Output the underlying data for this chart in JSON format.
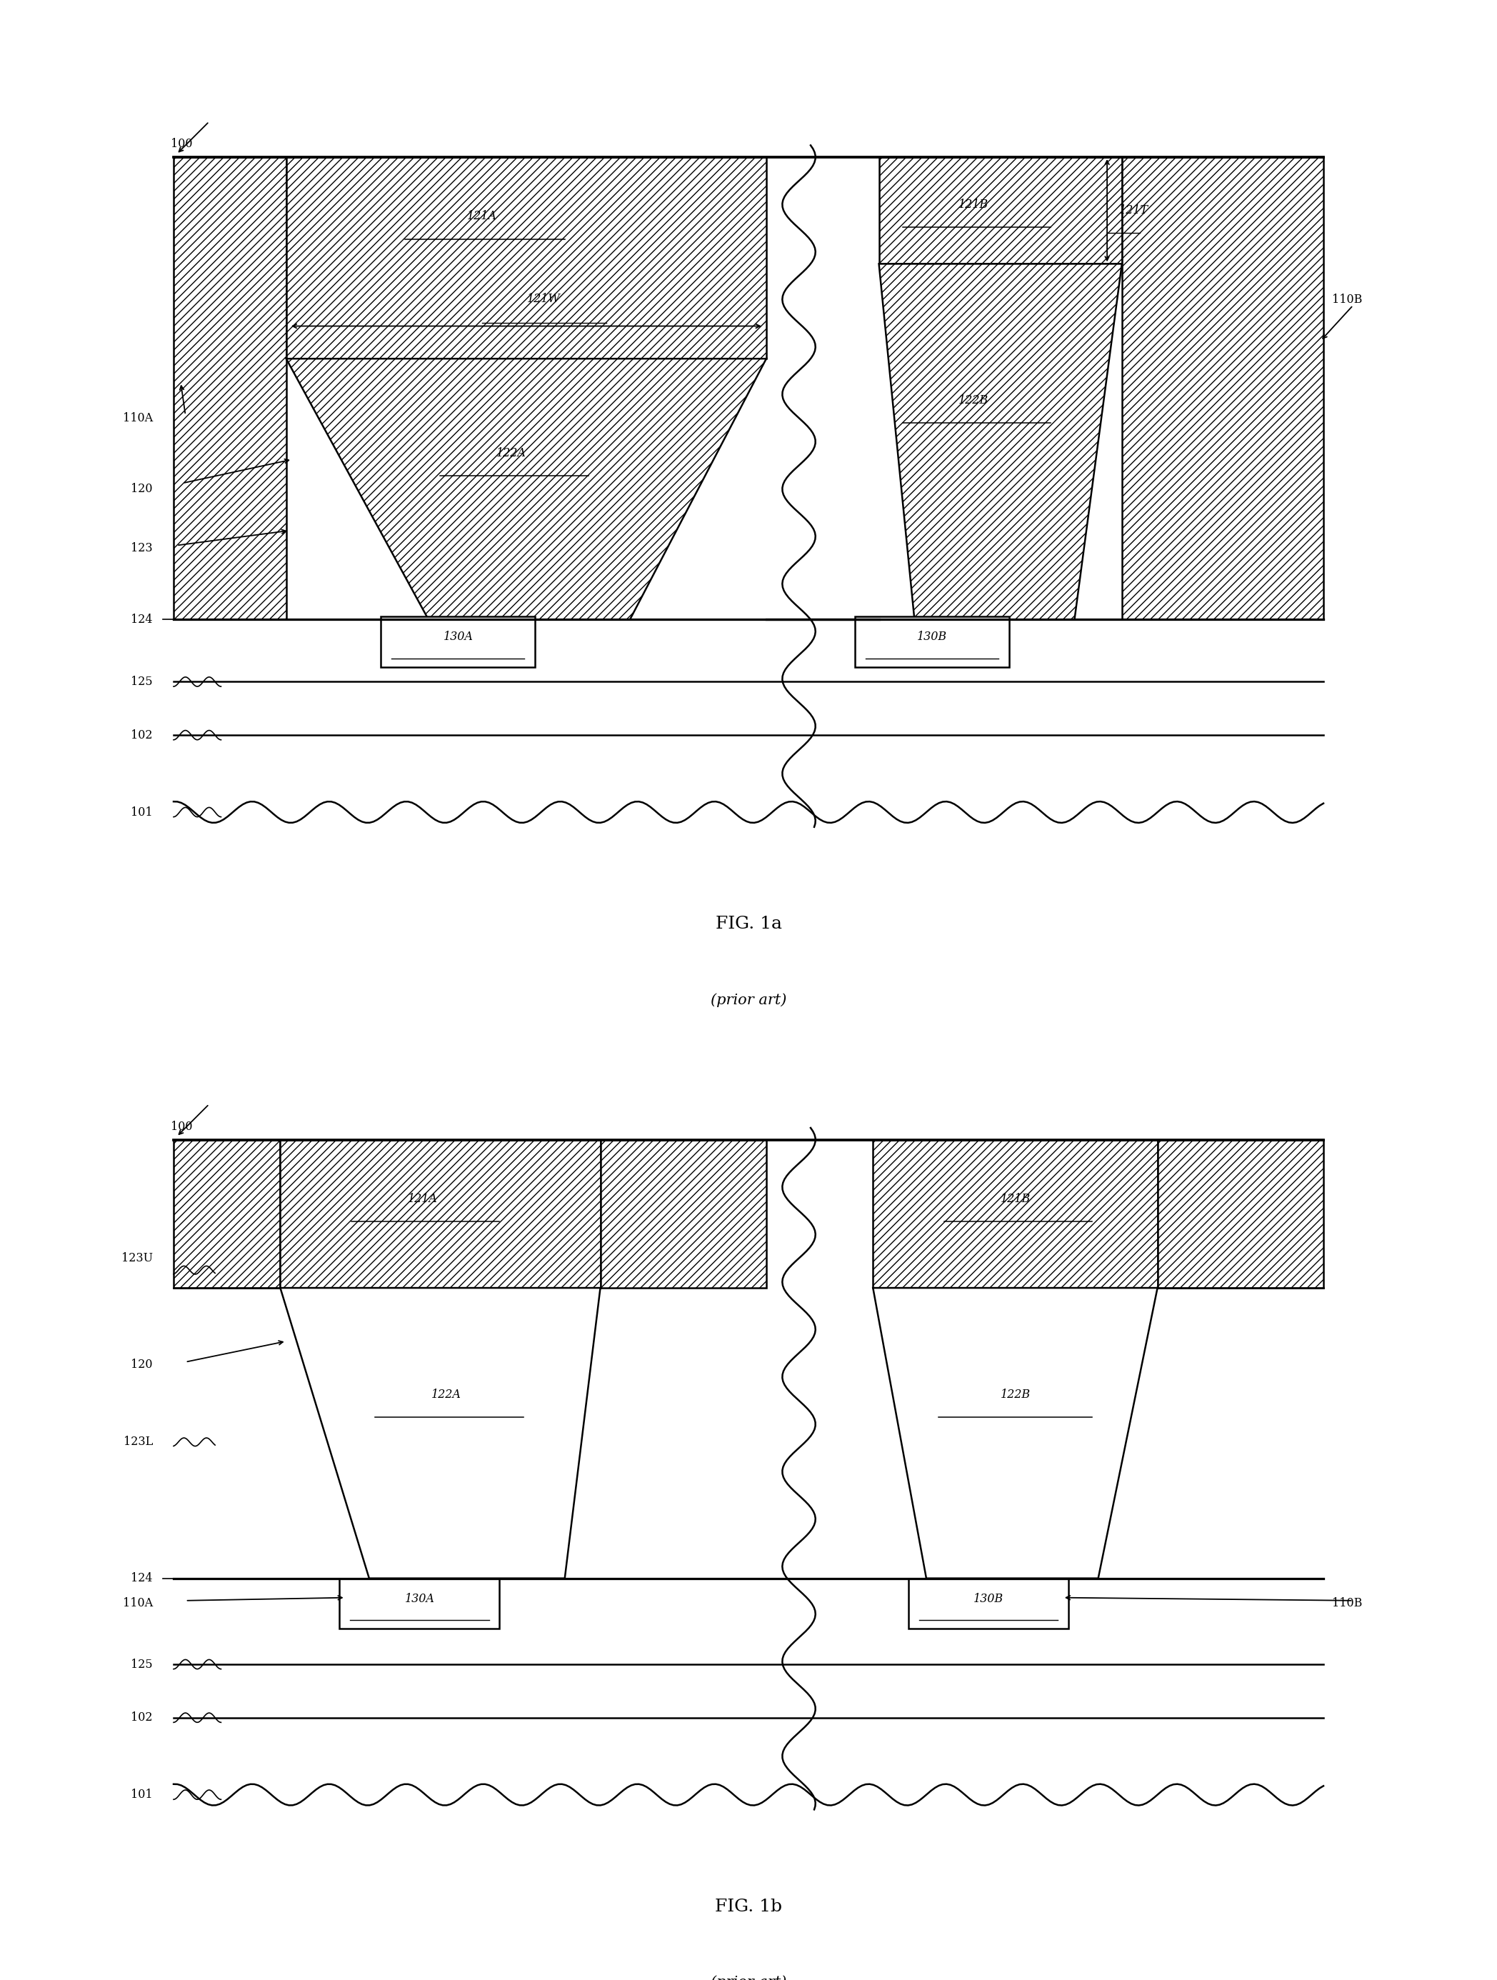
{
  "fig_width": 20.96,
  "fig_height": 27.72,
  "bg_color": "#ffffff",
  "fig1a_title": "FIG. 1a",
  "fig1a_subtitle": "(prior art)",
  "fig1b_title": "FIG. 1b",
  "fig1b_subtitle": "(prior art)"
}
